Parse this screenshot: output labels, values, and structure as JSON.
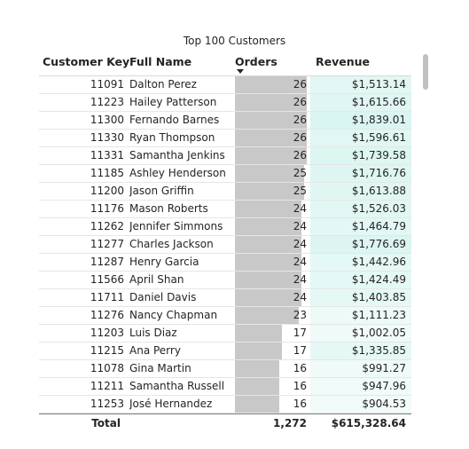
{
  "title": "Top 100 Customers",
  "columns": {
    "customer_key": "Customer Key",
    "full_name": "Full Name",
    "orders": "Orders",
    "revenue": "Revenue"
  },
  "rows": [
    {
      "key": "11091",
      "name": "Dalton Perez",
      "orders": "26",
      "revenue": "$1,513.14"
    },
    {
      "key": "11223",
      "name": "Hailey Patterson",
      "orders": "26",
      "revenue": "$1,615.66"
    },
    {
      "key": "11300",
      "name": "Fernando Barnes",
      "orders": "26",
      "revenue": "$1,839.01"
    },
    {
      "key": "11330",
      "name": "Ryan Thompson",
      "orders": "26",
      "revenue": "$1,596.61"
    },
    {
      "key": "11331",
      "name": "Samantha Jenkins",
      "orders": "26",
      "revenue": "$1,739.58"
    },
    {
      "key": "11185",
      "name": "Ashley Henderson",
      "orders": "25",
      "revenue": "$1,716.76"
    },
    {
      "key": "11200",
      "name": "Jason Griffin",
      "orders": "25",
      "revenue": "$1,613.88"
    },
    {
      "key": "11176",
      "name": "Mason Roberts",
      "orders": "24",
      "revenue": "$1,526.03"
    },
    {
      "key": "11262",
      "name": "Jennifer Simmons",
      "orders": "24",
      "revenue": "$1,464.79"
    },
    {
      "key": "11277",
      "name": "Charles Jackson",
      "orders": "24",
      "revenue": "$1,776.69"
    },
    {
      "key": "11287",
      "name": "Henry Garcia",
      "orders": "24",
      "revenue": "$1,442.96"
    },
    {
      "key": "11566",
      "name": "April Shan",
      "orders": "24",
      "revenue": "$1,424.49"
    },
    {
      "key": "11711",
      "name": "Daniel Davis",
      "orders": "24",
      "revenue": "$1,403.85"
    },
    {
      "key": "11276",
      "name": "Nancy Chapman",
      "orders": "23",
      "revenue": "$1,111.23"
    },
    {
      "key": "11203",
      "name": "Luis Diaz",
      "orders": "17",
      "revenue": "$1,002.05"
    },
    {
      "key": "11215",
      "name": "Ana Perry",
      "orders": "17",
      "revenue": "$1,335.85"
    },
    {
      "key": "11078",
      "name": "Gina Martin",
      "orders": "16",
      "revenue": "$991.27"
    },
    {
      "key": "11211",
      "name": "Samantha Russell",
      "orders": "16",
      "revenue": "$947.96"
    },
    {
      "key": "11253",
      "name": "José Hernandez",
      "orders": "16",
      "revenue": "$904.53"
    }
  ],
  "total": {
    "label": "Total",
    "orders": "1,272",
    "revenue": "$615,328.64"
  },
  "colors": {
    "data_bar": "#c8c8c8",
    "revenue_low": "#f1fbfa",
    "revenue_high": "#dff6f3"
  }
}
